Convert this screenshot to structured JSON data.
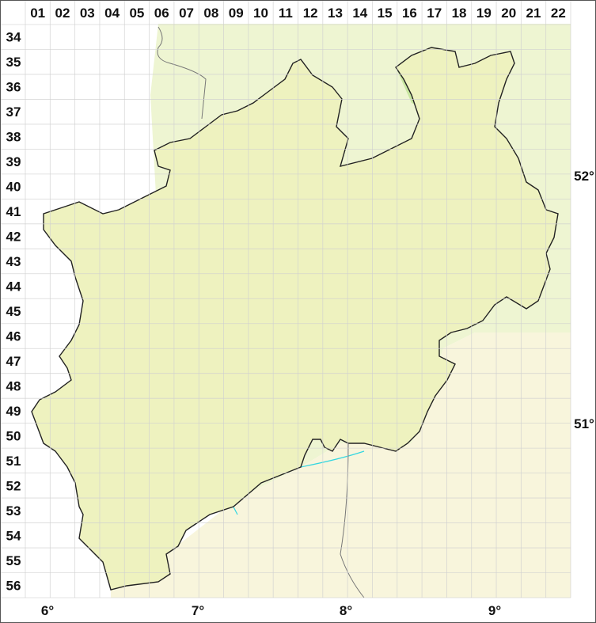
{
  "map": {
    "columns": [
      "01",
      "02",
      "03",
      "04",
      "05",
      "06",
      "07",
      "08",
      "09",
      "10",
      "11",
      "12",
      "13",
      "14",
      "15",
      "16",
      "17",
      "18",
      "19",
      "20",
      "21",
      "22"
    ],
    "rows": [
      "34",
      "35",
      "36",
      "37",
      "38",
      "39",
      "40",
      "41",
      "42",
      "43",
      "44",
      "45",
      "46",
      "47",
      "48",
      "49",
      "50",
      "51",
      "52",
      "53",
      "54",
      "55",
      "56"
    ],
    "longitude_labels": [
      "6°",
      "7°",
      "8°",
      "9°"
    ],
    "latitude_labels": [
      "52°",
      "51°"
    ],
    "colors": {
      "lowland_green": "#c8e6a0",
      "upland_yellow": "#eef2bf",
      "highland_red": "#e3a88a",
      "outside_north": "#eef5d2",
      "outside_south": "#f8f5dc",
      "river": "#33d6e0",
      "border": "#222222",
      "grid": "#d8d8d8"
    }
  }
}
